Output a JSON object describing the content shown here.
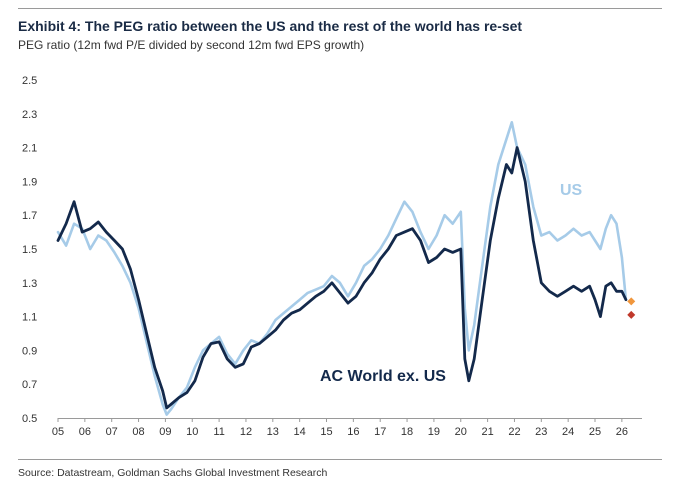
{
  "title": "Exhibit 4: The PEG ratio between the US and the rest of the world has re-set",
  "subtitle": "PEG ratio (12m fwd P/E divided by second 12m fwd EPS growth)",
  "source": "Source: Datastream, Goldman Sachs Global Investment Research",
  "colors": {
    "us": "#a6cbe8",
    "world": "#13294b",
    "us_end_marker": "#f0963c",
    "world_end_marker": "#c0392b"
  },
  "chart_data": {
    "type": "line",
    "title": "Exhibit 4: The PEG ratio between the US and the rest of the world has re-set",
    "subtitle": "PEG ratio (12m fwd P/E divided by second 12m fwd EPS growth)",
    "xlabel": "",
    "ylabel": "",
    "xlim": [
      2005,
      2026.75
    ],
    "ylim": [
      0.5,
      2.5
    ],
    "yticks": [
      "0.5",
      "0.7",
      "0.9",
      "1.1",
      "1.3",
      "1.5",
      "1.7",
      "1.9",
      "2.1",
      "2.3",
      "2.5"
    ],
    "xticks": [
      "05",
      "06",
      "07",
      "08",
      "09",
      "10",
      "11",
      "12",
      "13",
      "14",
      "15",
      "16",
      "17",
      "18",
      "19",
      "20",
      "21",
      "22",
      "23",
      "24",
      "25",
      "26"
    ],
    "grid": false,
    "legend": "inline labels",
    "series": [
      {
        "name": "US",
        "x": [
          2005.0,
          2005.3,
          2005.6,
          2005.9,
          2006.2,
          2006.5,
          2006.8,
          2007.1,
          2007.4,
          2007.7,
          2008.0,
          2008.3,
          2008.6,
          2008.9,
          2009.05,
          2009.2,
          2009.5,
          2009.8,
          2010.1,
          2010.4,
          2010.7,
          2011.0,
          2011.3,
          2011.6,
          2011.9,
          2012.2,
          2012.5,
          2012.8,
          2013.1,
          2013.4,
          2013.7,
          2014.0,
          2014.3,
          2014.6,
          2014.9,
          2015.2,
          2015.5,
          2015.8,
          2016.1,
          2016.4,
          2016.7,
          2017.0,
          2017.3,
          2017.6,
          2017.9,
          2018.2,
          2018.5,
          2018.8,
          2019.1,
          2019.4,
          2019.7,
          2020.0,
          2020.15,
          2020.3,
          2020.5,
          2020.8,
          2021.1,
          2021.4,
          2021.7,
          2021.9,
          2022.1,
          2022.4,
          2022.7,
          2023.0,
          2023.3,
          2023.6,
          2023.9,
          2024.2,
          2024.5,
          2024.8,
          2025.0,
          2025.2,
          2025.4,
          2025.6,
          2025.8,
          2026.0,
          2026.15
        ],
        "values": [
          1.6,
          1.52,
          1.65,
          1.62,
          1.5,
          1.58,
          1.55,
          1.48,
          1.4,
          1.3,
          1.15,
          0.95,
          0.75,
          0.58,
          0.52,
          0.55,
          0.62,
          0.68,
          0.8,
          0.9,
          0.94,
          0.98,
          0.88,
          0.82,
          0.9,
          0.96,
          0.94,
          1.0,
          1.08,
          1.12,
          1.16,
          1.2,
          1.24,
          1.26,
          1.28,
          1.34,
          1.3,
          1.22,
          1.3,
          1.4,
          1.44,
          1.5,
          1.58,
          1.68,
          1.78,
          1.72,
          1.6,
          1.5,
          1.58,
          1.7,
          1.65,
          1.72,
          1.15,
          0.9,
          1.05,
          1.4,
          1.75,
          2.0,
          2.15,
          2.25,
          2.1,
          2.0,
          1.75,
          1.58,
          1.6,
          1.55,
          1.58,
          1.62,
          1.58,
          1.6,
          1.55,
          1.5,
          1.62,
          1.7,
          1.65,
          1.45,
          1.2
        ]
      },
      {
        "name": "AC World ex. US",
        "x": [
          2005.0,
          2005.3,
          2005.6,
          2005.9,
          2006.2,
          2006.5,
          2006.8,
          2007.1,
          2007.4,
          2007.7,
          2008.0,
          2008.3,
          2008.6,
          2008.9,
          2009.05,
          2009.2,
          2009.5,
          2009.8,
          2010.1,
          2010.4,
          2010.7,
          2011.0,
          2011.3,
          2011.6,
          2011.9,
          2012.2,
          2012.5,
          2012.8,
          2013.1,
          2013.4,
          2013.7,
          2014.0,
          2014.3,
          2014.6,
          2014.9,
          2015.2,
          2015.5,
          2015.8,
          2016.1,
          2016.4,
          2016.7,
          2017.0,
          2017.3,
          2017.6,
          2017.9,
          2018.2,
          2018.5,
          2018.8,
          2019.1,
          2019.4,
          2019.7,
          2020.0,
          2020.15,
          2020.3,
          2020.5,
          2020.8,
          2021.1,
          2021.4,
          2021.7,
          2021.9,
          2022.1,
          2022.4,
          2022.7,
          2023.0,
          2023.3,
          2023.6,
          2023.9,
          2024.2,
          2024.5,
          2024.8,
          2025.0,
          2025.2,
          2025.4,
          2025.6,
          2025.8,
          2026.0,
          2026.15
        ],
        "values": [
          1.55,
          1.65,
          1.78,
          1.6,
          1.62,
          1.66,
          1.6,
          1.55,
          1.5,
          1.38,
          1.2,
          1.0,
          0.8,
          0.66,
          0.56,
          0.58,
          0.62,
          0.65,
          0.72,
          0.86,
          0.94,
          0.95,
          0.85,
          0.8,
          0.82,
          0.92,
          0.94,
          0.98,
          1.02,
          1.08,
          1.12,
          1.14,
          1.18,
          1.22,
          1.25,
          1.3,
          1.24,
          1.18,
          1.22,
          1.3,
          1.36,
          1.44,
          1.5,
          1.58,
          1.6,
          1.62,
          1.55,
          1.42,
          1.45,
          1.5,
          1.48,
          1.5,
          0.85,
          0.72,
          0.85,
          1.2,
          1.55,
          1.8,
          2.0,
          1.95,
          2.1,
          1.9,
          1.55,
          1.3,
          1.25,
          1.22,
          1.25,
          1.28,
          1.25,
          1.28,
          1.2,
          1.1,
          1.28,
          1.3,
          1.25,
          1.25,
          1.2
        ]
      }
    ],
    "annotations": [
      {
        "text": "US",
        "series": "US"
      },
      {
        "text": "AC World ex. US",
        "series": "AC World ex. US"
      }
    ],
    "end_markers": [
      {
        "series": "US",
        "x": 2026.35,
        "value": 1.19
      },
      {
        "series": "AC World ex. US",
        "x": 2026.35,
        "value": 1.11
      }
    ]
  }
}
